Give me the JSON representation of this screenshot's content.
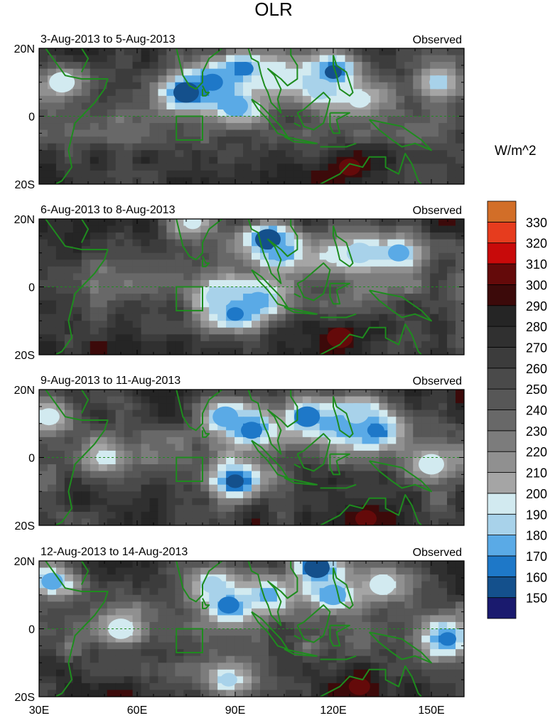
{
  "title": "OLR",
  "colorbar": {
    "unit_label": "W/m^2",
    "levels": [
      150,
      160,
      170,
      180,
      190,
      200,
      210,
      220,
      230,
      240,
      250,
      260,
      270,
      280,
      290,
      300,
      310,
      320,
      330
    ],
    "colors": [
      "#1a1a6e",
      "#14508c",
      "#1e78c8",
      "#5aaae6",
      "#a8d2ea",
      "#d2eaf0",
      "#a5a5a5",
      "#909090",
      "#7c7c7c",
      "#686868",
      "#575757",
      "#4a4a4a",
      "#3c3c3c",
      "#303030",
      "#252525",
      "#3c0a0a",
      "#640a0a",
      "#c80a0a",
      "#e63c1e",
      "#d26e28"
    ]
  },
  "chart_data": [
    {
      "type": "heatmap",
      "title": "3-Aug-2013 to 5-Aug-2013",
      "label_right": "Observed",
      "xlim": [
        30,
        160
      ],
      "ylim": [
        -20,
        20
      ],
      "x_ticks": [
        "30E",
        "60E",
        "90E",
        "120E",
        "150E"
      ],
      "y_ticks": [
        "20N",
        "0",
        "20S"
      ],
      "features": [
        {
          "lon": 75,
          "lat": 7,
          "olr": 150
        },
        {
          "lon": 83,
          "lat": 10,
          "olr": 165
        },
        {
          "lon": 93,
          "lat": 14,
          "olr": 160
        },
        {
          "lon": 90,
          "lat": 3,
          "olr": 170
        },
        {
          "lon": 103,
          "lat": 12,
          "olr": 190
        },
        {
          "lon": 120,
          "lat": 13,
          "olr": 150
        },
        {
          "lon": 116,
          "lat": 8,
          "olr": 180
        },
        {
          "lon": 128,
          "lat": 5,
          "olr": 195
        },
        {
          "lon": 152,
          "lat": 10,
          "olr": 185
        },
        {
          "lon": 37,
          "lat": 10,
          "olr": 195
        },
        {
          "lon": 125,
          "lat": -15,
          "olr": 300
        }
      ]
    },
    {
      "type": "heatmap",
      "title": "6-Aug-2013 to 8-Aug-2013",
      "label_right": "Observed",
      "xlim": [
        30,
        160
      ],
      "ylim": [
        -20,
        20
      ],
      "x_ticks": [
        "30E",
        "60E",
        "90E",
        "120E",
        "150E"
      ],
      "y_ticks": [
        "20N",
        "0",
        "20S"
      ],
      "features": [
        {
          "lon": 100,
          "lat": 14,
          "olr": 150
        },
        {
          "lon": 104,
          "lat": 10,
          "olr": 170
        },
        {
          "lon": 90,
          "lat": -8,
          "olr": 160
        },
        {
          "lon": 85,
          "lat": -3,
          "olr": 180
        },
        {
          "lon": 97,
          "lat": -4,
          "olr": 175
        },
        {
          "lon": 77,
          "lat": 19,
          "olr": 190
        },
        {
          "lon": 128,
          "lat": 10,
          "olr": 180
        },
        {
          "lon": 140,
          "lat": 10,
          "olr": 175
        },
        {
          "lon": 120,
          "lat": 9,
          "olr": 195
        },
        {
          "lon": 122,
          "lat": -15,
          "olr": 300
        }
      ]
    },
    {
      "type": "heatmap",
      "title": "9-Aug-2013 to 11-Aug-2013",
      "label_right": "Observed",
      "xlim": [
        30,
        160
      ],
      "ylim": [
        -20,
        20
      ],
      "x_ticks": [
        "30E",
        "60E",
        "90E",
        "120E",
        "150E"
      ],
      "y_ticks": [
        "20N",
        "0",
        "20S"
      ],
      "features": [
        {
          "lon": 87,
          "lat": 12,
          "olr": 170
        },
        {
          "lon": 95,
          "lat": 8,
          "olr": 165
        },
        {
          "lon": 90,
          "lat": -7,
          "olr": 150
        },
        {
          "lon": 112,
          "lat": 12,
          "olr": 165
        },
        {
          "lon": 122,
          "lat": 10,
          "olr": 170
        },
        {
          "lon": 133,
          "lat": 8,
          "olr": 160
        },
        {
          "lon": 127,
          "lat": 13,
          "olr": 180
        },
        {
          "lon": 33,
          "lat": 12,
          "olr": 190
        },
        {
          "lon": 50,
          "lat": 0,
          "olr": 195
        },
        {
          "lon": 150,
          "lat": -2,
          "olr": 195
        },
        {
          "lon": 130,
          "lat": -18,
          "olr": 300
        }
      ]
    },
    {
      "type": "heatmap",
      "title": "12-Aug-2013 to 14-Aug-2013",
      "label_right": "Observed",
      "xlim": [
        30,
        160
      ],
      "ylim": [
        -20,
        20
      ],
      "x_ticks": [
        "30E",
        "60E",
        "90E",
        "120E",
        "150E"
      ],
      "y_ticks": [
        "20N",
        "0",
        "20S"
      ],
      "features": [
        {
          "lon": 115,
          "lat": 18,
          "olr": 150
        },
        {
          "lon": 88,
          "lat": 7,
          "olr": 160
        },
        {
          "lon": 100,
          "lat": 10,
          "olr": 175
        },
        {
          "lon": 120,
          "lat": 10,
          "olr": 170
        },
        {
          "lon": 83,
          "lat": 13,
          "olr": 185
        },
        {
          "lon": 155,
          "lat": -3,
          "olr": 165
        },
        {
          "lon": 135,
          "lat": 13,
          "olr": 190
        },
        {
          "lon": 34,
          "lat": 14,
          "olr": 175
        },
        {
          "lon": 88,
          "lat": -15,
          "olr": 185
        },
        {
          "lon": 55,
          "lat": 0,
          "olr": 195
        },
        {
          "lon": 128,
          "lat": -17,
          "olr": 300
        }
      ]
    }
  ]
}
